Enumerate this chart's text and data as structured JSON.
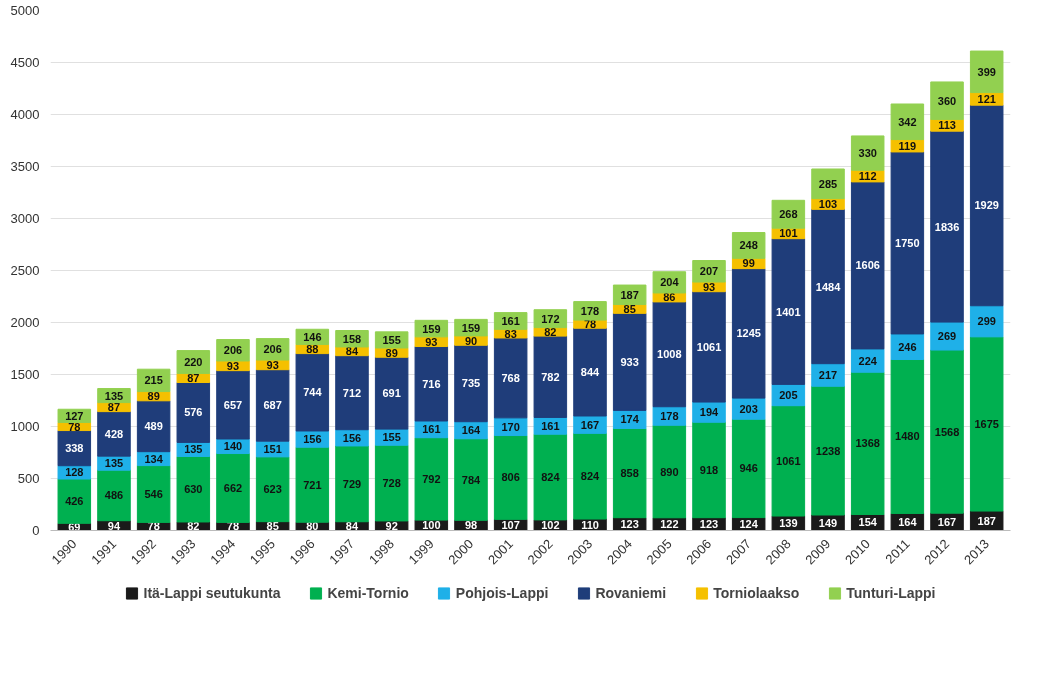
{
  "chart_data": {
    "type": "bar",
    "stacked": true,
    "data_labels": true,
    "grid": "y",
    "legend": "bottom",
    "categories": [
      "1990",
      "1991",
      "1992",
      "1993",
      "1994",
      "1995",
      "1996",
      "1997",
      "1998",
      "1999",
      "2000",
      "2001",
      "2002",
      "2003",
      "2004",
      "2005",
      "2006",
      "2007",
      "2008",
      "2009",
      "2010",
      "2011",
      "2012",
      "2013"
    ],
    "ylim": [
      0,
      5000
    ],
    "yticks": [
      0,
      500,
      1000,
      1500,
      2000,
      2500,
      3000,
      3500,
      4000,
      4500,
      5000
    ],
    "series": [
      {
        "name": "Itä-Lappi seutukunta",
        "color": "#1a1a1a",
        "values": [
          69,
          94,
          78,
          82,
          78,
          85,
          80,
          84,
          92,
          100,
          98,
          107,
          102,
          110,
          123,
          122,
          123,
          124,
          139,
          149,
          154,
          164,
          167,
          187
        ]
      },
      {
        "name": "Kemi-Tornio",
        "color": "#00b050",
        "values": [
          426,
          486,
          546,
          630,
          662,
          623,
          721,
          729,
          728,
          792,
          784,
          806,
          824,
          824,
          858,
          890,
          918,
          946,
          1061,
          1238,
          1368,
          1480,
          1568,
          1675
        ]
      },
      {
        "name": "Pohjois-Lappi",
        "color": "#1fb0e8",
        "values": [
          128,
          135,
          134,
          135,
          140,
          151,
          156,
          156,
          155,
          161,
          164,
          170,
          161,
          167,
          174,
          178,
          194,
          203,
          205,
          217,
          224,
          246,
          269,
          299
        ]
      },
      {
        "name": "Rovaniemi",
        "color": "#1f3d7a",
        "values": [
          338,
          428,
          489,
          576,
          657,
          687,
          744,
          712,
          691,
          716,
          735,
          768,
          782,
          844,
          933,
          1008,
          1061,
          1245,
          1401,
          1484,
          1606,
          1750,
          1836,
          1929
        ]
      },
      {
        "name": "Torniolaakso",
        "color": "#f5c000",
        "values": [
          78,
          87,
          89,
          87,
          93,
          93,
          88,
          84,
          89,
          93,
          90,
          83,
          82,
          78,
          85,
          86,
          93,
          99,
          101,
          103,
          112,
          119,
          113,
          121
        ]
      },
      {
        "name": "Tunturi-Lappi",
        "color": "#92d050",
        "values": [
          127,
          135,
          215,
          220,
          206,
          206,
          146,
          158,
          155,
          159,
          159,
          161,
          172,
          178,
          187,
          204,
          207,
          248,
          268,
          285,
          330,
          342,
          360,
          399
        ]
      }
    ]
  }
}
